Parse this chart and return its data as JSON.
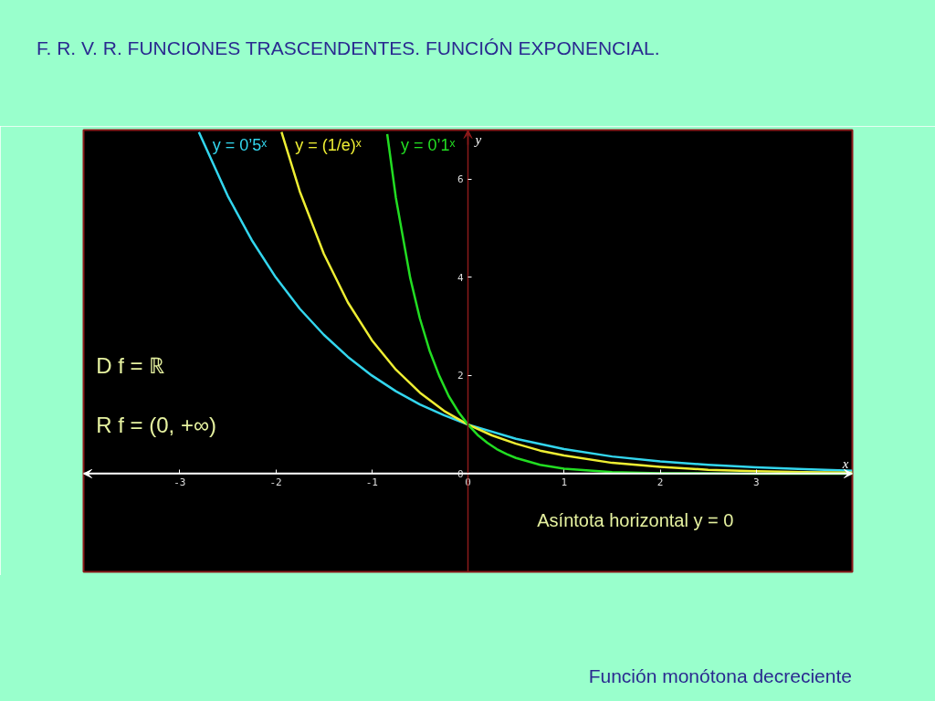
{
  "chart_data": {
    "type": "line",
    "title": "F. R. V. R. FUNCIONES TRASCENDENTES. FUNCIÓN EXPONENCIAL.",
    "xlabel": "x",
    "ylabel": "y",
    "annotations": [
      "D f = ℝ",
      "R f = (0, +∞)",
      "Asíntota horizontal y = 0",
      "Función monótona decreciente"
    ],
    "series": [
      {
        "name": "y = 0’5ˣ",
        "color": "#33d6ee",
        "x": [
          -2.8,
          -2.5,
          -2.25,
          -2,
          -1.75,
          -1.5,
          -1.25,
          -1,
          -0.75,
          -0.5,
          -0.25,
          0,
          0.5,
          1,
          1.5,
          2,
          2.5,
          3,
          3.5,
          4
        ],
        "values": [
          6.96,
          5.66,
          4.76,
          4,
          3.36,
          2.83,
          2.38,
          2,
          1.68,
          1.41,
          1.19,
          1,
          0.71,
          0.5,
          0.35,
          0.25,
          0.18,
          0.13,
          0.09,
          0.06
        ]
      },
      {
        "name": "y = (1/e)ˣ",
        "color": "#eeee33",
        "x": [
          -1.94,
          -1.75,
          -1.5,
          -1.25,
          -1,
          -0.75,
          -0.5,
          -0.25,
          0,
          0.25,
          0.5,
          0.75,
          1,
          1.5,
          2,
          2.5,
          3,
          3.5,
          4
        ],
        "values": [
          6.96,
          5.75,
          4.48,
          3.49,
          2.72,
          2.12,
          1.65,
          1.28,
          1,
          0.78,
          0.61,
          0.47,
          0.37,
          0.22,
          0.14,
          0.08,
          0.05,
          0.03,
          0.02
        ]
      },
      {
        "name": "y = 0’1ˣ",
        "color": "#22dd22",
        "x": [
          -0.84,
          -0.75,
          -0.6,
          -0.5,
          -0.4,
          -0.3,
          -0.2,
          -0.1,
          0,
          0.1,
          0.2,
          0.3,
          0.4,
          0.5,
          0.75,
          1,
          1.5,
          2,
          3,
          4
        ],
        "values": [
          6.92,
          5.62,
          3.98,
          3.16,
          2.51,
          2,
          1.58,
          1.26,
          1,
          0.79,
          0.63,
          0.5,
          0.4,
          0.32,
          0.18,
          0.1,
          0.03,
          0.01,
          0,
          0
        ]
      }
    ],
    "xlim": [
      -4,
      4
    ],
    "ylim": [
      -2,
      7
    ],
    "xticks": [
      -3,
      -2,
      -1,
      0,
      1,
      2,
      3
    ],
    "yticks": [
      0,
      2,
      4,
      6
    ],
    "grid": false,
    "legend": false
  }
}
